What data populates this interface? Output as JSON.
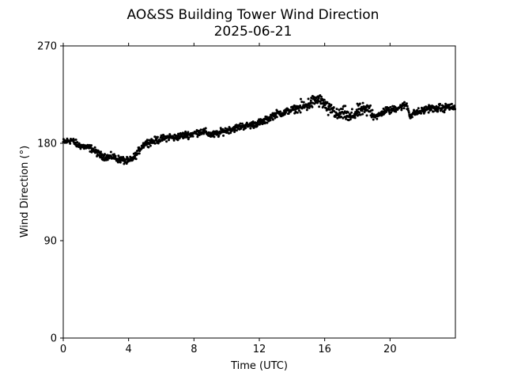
{
  "chart_data": {
    "type": "scatter",
    "title": "AO&SS Building Tower Wind Direction",
    "subtitle": "2025-06-21",
    "xlabel": "Time (UTC)",
    "ylabel": "Wind Direction (°)",
    "xlim": [
      0,
      24
    ],
    "ylim": [
      0,
      270
    ],
    "xticks": [
      0,
      4,
      8,
      12,
      16,
      20
    ],
    "xtick_labels": [
      "0",
      "4",
      "8",
      "12",
      "16",
      "20"
    ],
    "yticks": [
      0,
      90,
      180,
      270
    ],
    "ytick_labels": [
      "0",
      "90",
      "180",
      "270"
    ],
    "grid": false,
    "legend": "none",
    "marker_color": "#000000",
    "series": [
      {
        "x": [
          0.0,
          0.25,
          0.5,
          0.75,
          1.0,
          1.25,
          1.5,
          1.75,
          2.0,
          2.25,
          2.5,
          2.75,
          3.0,
          3.25,
          3.5,
          3.75,
          4.0,
          4.25,
          4.5,
          4.75,
          5.0,
          5.25,
          5.5,
          5.75,
          6.0,
          6.25,
          6.5,
          6.75,
          7.0,
          7.25,
          7.5,
          7.75,
          8.0,
          8.25,
          8.5,
          8.75,
          9.0,
          9.25,
          9.5,
          9.75,
          10.0,
          10.25,
          10.5,
          10.75,
          11.0,
          11.25,
          11.5,
          11.75,
          12.0,
          12.25,
          12.5,
          12.75,
          13.0,
          13.25,
          13.5,
          13.75,
          14.0,
          14.25,
          14.5,
          14.75,
          15.0,
          15.25,
          15.5,
          15.75,
          16.0,
          16.25,
          16.5,
          16.75,
          17.0,
          17.25,
          17.5,
          17.75,
          18.0,
          18.25,
          18.5,
          18.75,
          19.0,
          19.25,
          19.5,
          19.75,
          20.0,
          20.25,
          20.5,
          20.75,
          21.0,
          21.25,
          21.5,
          21.75,
          22.0,
          22.25,
          22.5,
          22.75,
          23.0,
          23.25,
          23.5,
          23.75
        ],
        "y": [
          181,
          182,
          183,
          180,
          178,
          177,
          176,
          175,
          172,
          169,
          168,
          167,
          168,
          166,
          165,
          164,
          163,
          166,
          170,
          176,
          180,
          181,
          182,
          183,
          184,
          185,
          186,
          185,
          186,
          187,
          188,
          188,
          189,
          190,
          191,
          190,
          188,
          188,
          189,
          191,
          192,
          193,
          194,
          195,
          196,
          196,
          197,
          198,
          199,
          200,
          202,
          205,
          207,
          208,
          208,
          210,
          211,
          212,
          213,
          214,
          216,
          218,
          220,
          219,
          216,
          210,
          212,
          205,
          207,
          208,
          203,
          206,
          209,
          211,
          210,
          212,
          206,
          205,
          208,
          211,
          210,
          212,
          213,
          214,
          216,
          205,
          208,
          209,
          210,
          212,
          213,
          211,
          213,
          212,
          214,
          213
        ]
      }
    ]
  }
}
